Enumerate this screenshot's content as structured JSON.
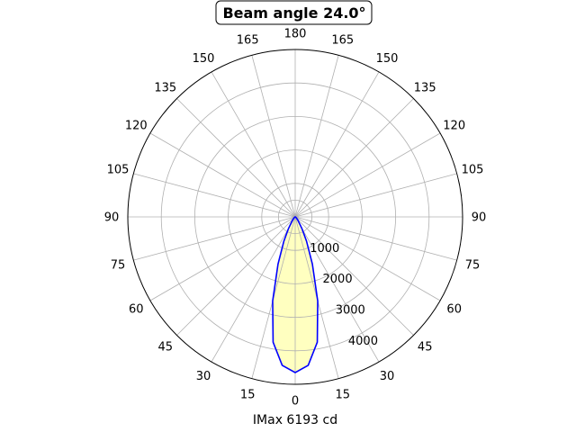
{
  "chart_data": {
    "type": "polar-line",
    "title": "Beam angle 24.0°",
    "xlabel": "IMax 6193 cd",
    "angle_ticks": [
      "0",
      "15",
      "30",
      "45",
      "60",
      "75",
      "90",
      "105",
      "120",
      "135",
      "150",
      "165",
      "180",
      "165",
      "150",
      "135",
      "120",
      "105",
      "90",
      "75",
      "60",
      "45",
      "30",
      "15"
    ],
    "radial_ticks": [
      "1000",
      "2000",
      "3000",
      "4000"
    ],
    "radial_tick_values": [
      1000,
      2000,
      3000,
      4000
    ],
    "r_max": 5000,
    "angle_gridlines_deg": [
      0,
      15,
      30,
      45,
      60,
      75,
      90,
      105,
      120,
      135,
      150,
      165,
      180,
      195,
      210,
      225,
      240,
      255,
      270,
      285,
      300,
      315,
      330,
      345
    ],
    "grid": true,
    "series": [
      {
        "color": "#0000ff",
        "fill_color": "#ffffc0",
        "angle_deg": [
          0,
          5,
          10,
          15,
          20,
          25,
          30,
          40,
          50,
          60,
          70,
          80,
          90
        ],
        "values": [
          4650,
          4450,
          3800,
          2600,
          1500,
          800,
          400,
          120,
          40,
          10,
          0,
          0,
          0
        ]
      }
    ]
  }
}
